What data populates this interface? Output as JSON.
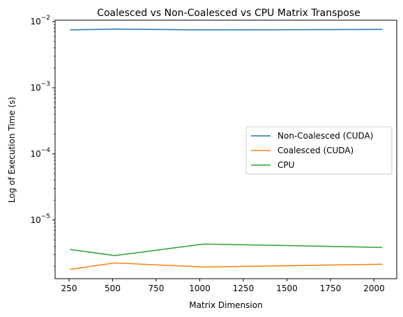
{
  "chart_data": {
    "type": "line",
    "title": "Coalesced vs Non-Coalesced vs CPU Matrix Transpose",
    "xlabel": "Matrix Dimension",
    "ylabel": "Log of Execution Time (s)",
    "yscale": "log",
    "xlim": [
      170,
      2130
    ],
    "ylim": [
      1.3e-06,
      0.0105
    ],
    "x_ticks": [
      250,
      500,
      750,
      1000,
      1250,
      1500,
      1750,
      2000
    ],
    "y_ticks": [
      {
        "value": 1e-05,
        "base": "10",
        "exp": "−5"
      },
      {
        "value": 0.0001,
        "base": "10",
        "exp": "−4"
      },
      {
        "value": 0.001,
        "base": "10",
        "exp": "−3"
      },
      {
        "value": 0.01,
        "base": "10",
        "exp": "−2"
      }
    ],
    "grid": false,
    "legend_position": "center-right",
    "x": [
      256,
      512,
      1024,
      2048
    ],
    "series": [
      {
        "name": "Non-Coalesced (CUDA)",
        "color": "#1f77b4",
        "values": [
          0.0075,
          0.0077,
          0.0075,
          0.0076
        ]
      },
      {
        "name": "Coalesced (CUDA)",
        "color": "#ff7f0e",
        "values": [
          1.8e-06,
          2.25e-06,
          1.95e-06,
          2.15e-06
        ]
      },
      {
        "name": "CPU",
        "color": "#2ca02c",
        "values": [
          3.6e-06,
          2.9e-06,
          4.35e-06,
          3.85e-06
        ]
      }
    ]
  }
}
